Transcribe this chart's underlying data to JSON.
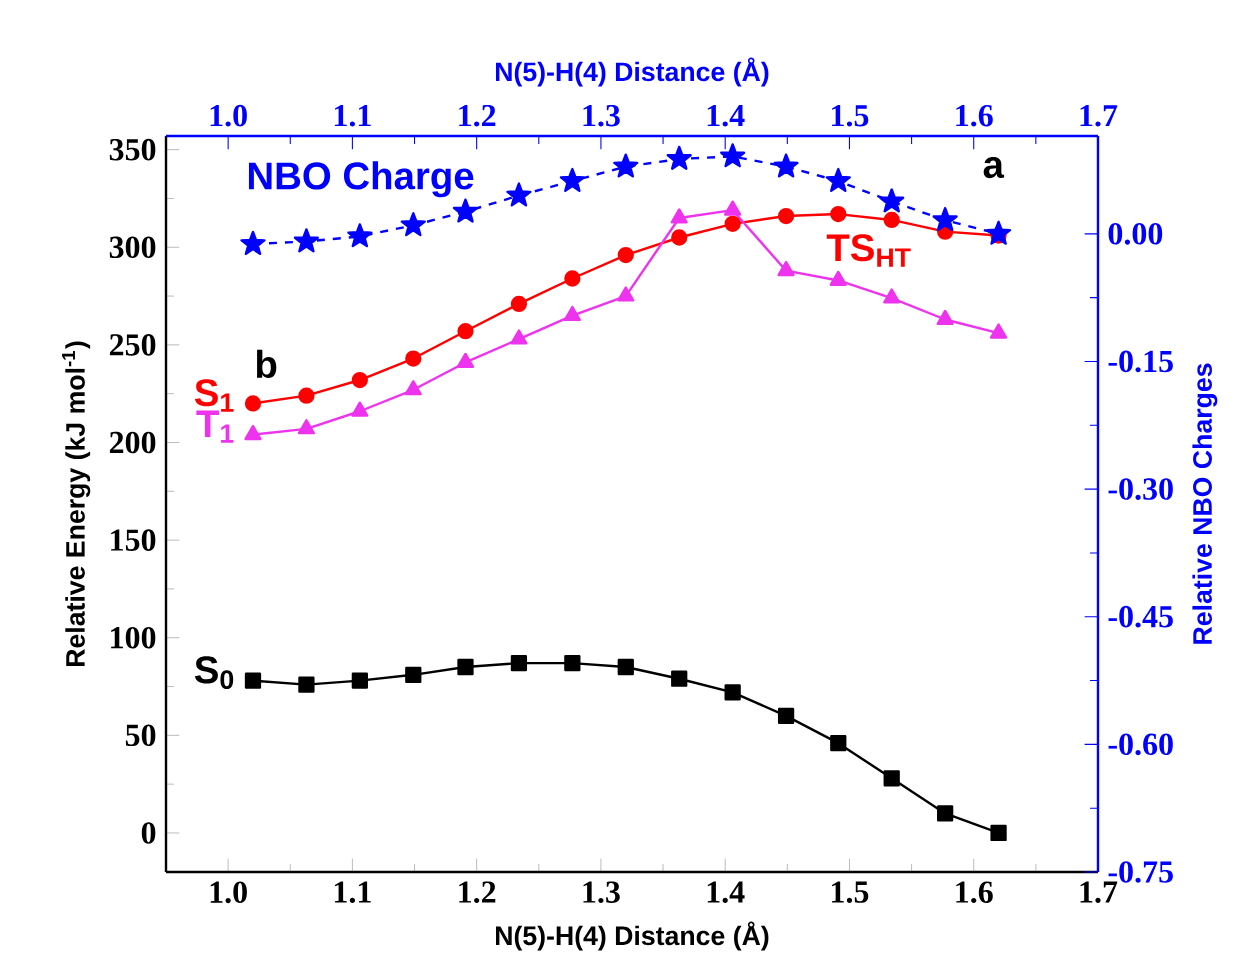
{
  "chart_data": {
    "type": "line",
    "xlabel": "N(5)-H(4) Distance (Å)",
    "x2label": "N(5)-H(4) Distance (Å)",
    "ylabel": "Relative Energy (kJ mol$^{-1}$)",
    "y2label": "Relative NBO Charges",
    "x": [
      1.02,
      1.063,
      1.106,
      1.149,
      1.191,
      1.234,
      1.277,
      1.32,
      1.363,
      1.406,
      1.449,
      1.491,
      1.534,
      1.577,
      1.62
    ],
    "xlim": [
      0.95,
      1.7
    ],
    "xticks": [
      {
        "value": 1.0,
        "label": "1.0"
      },
      1.1,
      1.2,
      1.3,
      1.4,
      1.5,
      1.6,
      1.7
    ],
    "x2lim": [
      0.95,
      1.7
    ],
    "x2ticks": [
      {
        "value": 1.0,
        "label": "1.0"
      },
      1.1,
      1.2,
      1.3,
      1.4,
      1.5,
      1.6,
      1.7
    ],
    "ylim": [
      -20,
      357
    ],
    "yticks": [
      0,
      50,
      100,
      150,
      200,
      250,
      300,
      350
    ],
    "y2lim": [
      -0.75,
      0.115
    ],
    "y2ticks": [
      {
        "value": 0,
        "label": "0.00"
      },
      {
        "value": -0.15,
        "label": "-0.15"
      },
      {
        "value": -0.3,
        "label": "-0.30"
      },
      {
        "value": -0.45,
        "label": "-0.45"
      },
      {
        "value": -0.6,
        "label": "-0.60"
      },
      {
        "value": -0.75,
        "label": "-0.75"
      }
    ],
    "series": [
      {
        "name": "S$_{0}$",
        "color": "#000000",
        "marker": "square",
        "line_style": "solid",
        "values": [
          78,
          76,
          78,
          81,
          85,
          87,
          87,
          85,
          79,
          72,
          60,
          46,
          28,
          10,
          0
        ]
      },
      {
        "name": "S$_{1}$",
        "color": "#ff0000",
        "marker": "circle",
        "line_style": "solid",
        "values": [
          220,
          224,
          232,
          243,
          257,
          271,
          284,
          296,
          305,
          312,
          316,
          317,
          314,
          308,
          306
        ]
      },
      {
        "name": "T$_{1}$",
        "color": "#ee33ee",
        "marker": "triangle",
        "line_style": "solid",
        "values": [
          204,
          207,
          216,
          227,
          241,
          253,
          265,
          275,
          315,
          319,
          288,
          283,
          274,
          263,
          256
        ]
      },
      {
        "name": "NBO Charge",
        "color": "#0000ff",
        "marker": "star",
        "line_style": "dashed",
        "axis": "y2",
        "values": [
          -0.012,
          -0.009,
          -0.003,
          0.01,
          0.026,
          0.045,
          0.062,
          0.079,
          0.088,
          0.091,
          0.079,
          0.062,
          0.038,
          0.016,
          0.0
        ]
      }
    ],
    "annotations": [
      {
        "text": "a",
        "x": 1.62,
        "y": 306
      },
      {
        "text": "b",
        "x": 1.02,
        "y": 220
      },
      {
        "text": "TS$_{HT}$",
        "x": 1.491,
        "y": 317
      }
    ],
    "grid": false
  }
}
